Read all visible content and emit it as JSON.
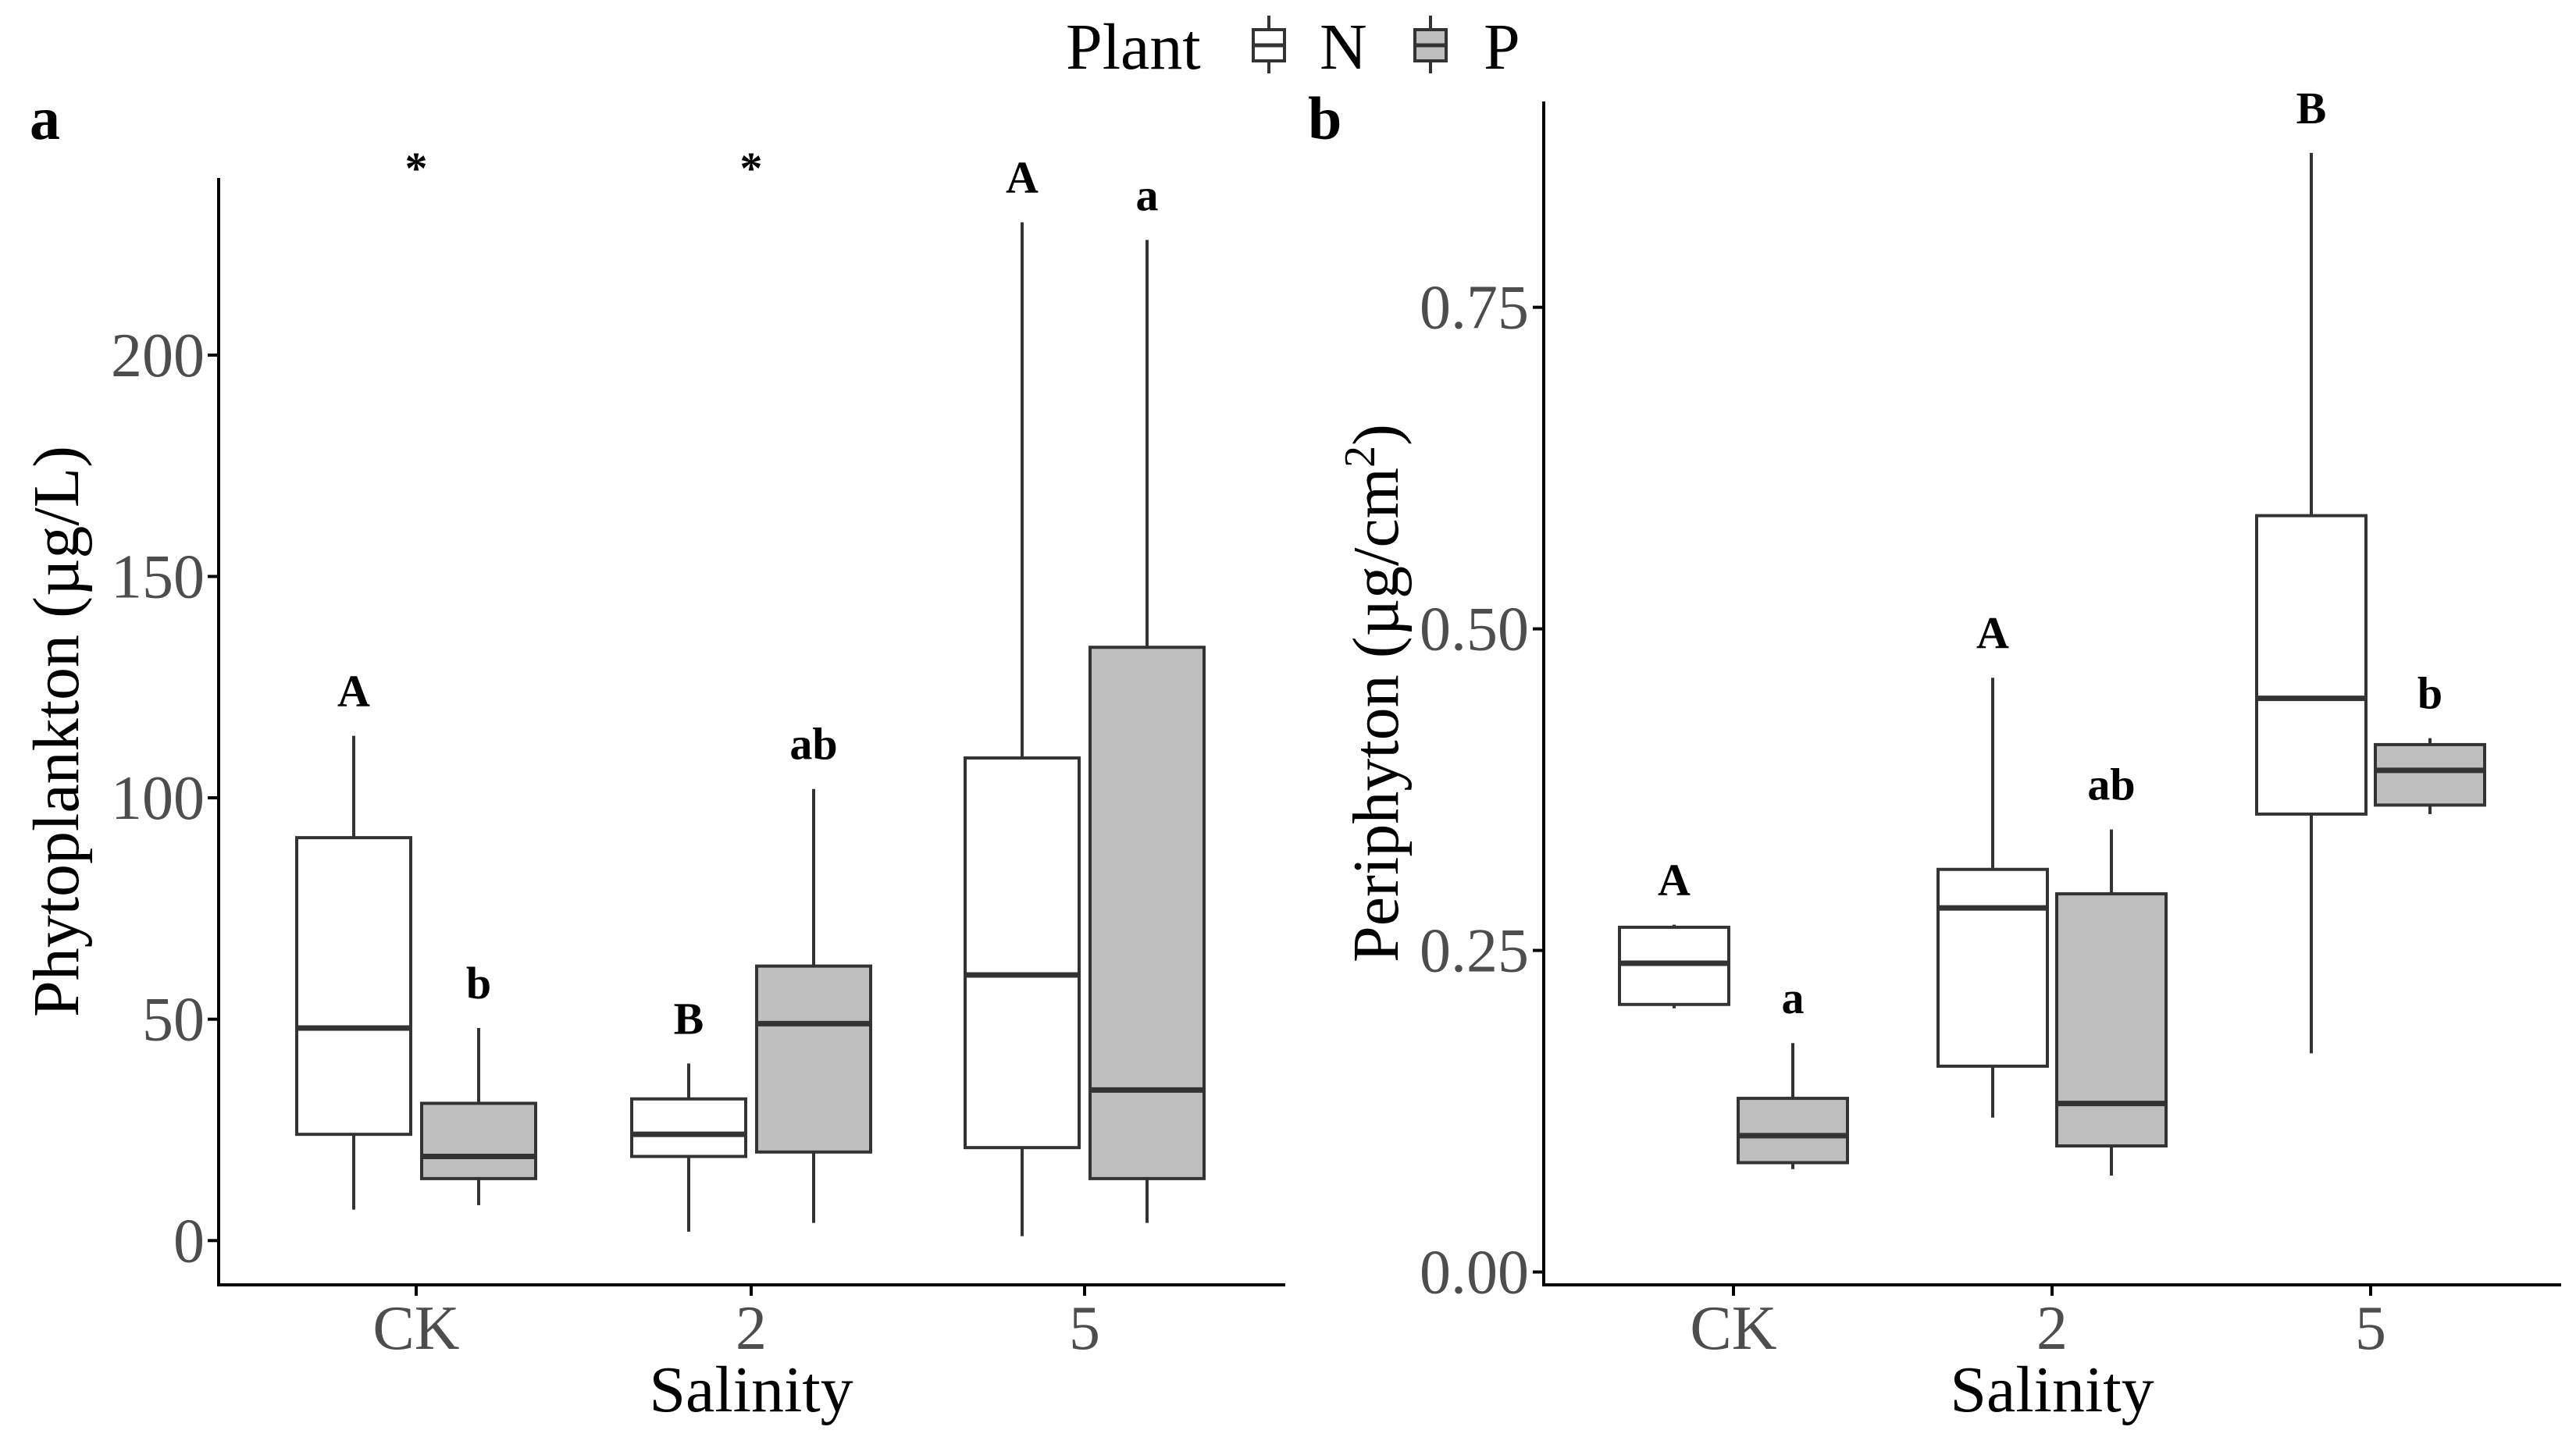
{
  "legend": {
    "title": "Plant",
    "items": [
      {
        "label": "N",
        "color": "#ffffff"
      },
      {
        "label": "P",
        "color": "#bebebe"
      }
    ]
  },
  "colors": {
    "N": "#ffffff",
    "P": "#bebebe",
    "stroke": "#333333",
    "axis": "#000000"
  },
  "chart_data": [
    {
      "panel": "a",
      "type": "box",
      "title": "",
      "xlabel": "Salinity",
      "ylabel": "Phytoplankton (µg/L)",
      "ylim": [
        -10,
        240
      ],
      "yticks": [
        0,
        50,
        100,
        150,
        200
      ],
      "ytick_labels": [
        "0",
        "50",
        "100",
        "150",
        "200"
      ],
      "categories": [
        "CK",
        "2",
        "5"
      ],
      "series": [
        {
          "name": "N",
          "boxes": [
            {
              "min": 7,
              "q1": 24,
              "median": 48,
              "q3": 91,
              "max": 114
            },
            {
              "min": 2,
              "q1": 19,
              "median": 24,
              "q3": 32,
              "max": 40
            },
            {
              "min": 1,
              "q1": 21,
              "median": 60,
              "q3": 109,
              "max": 230
            }
          ]
        },
        {
          "name": "P",
          "boxes": [
            {
              "min": 8,
              "q1": 14,
              "median": 19,
              "q3": 31,
              "max": 48
            },
            {
              "min": 4,
              "q1": 20,
              "median": 49,
              "q3": 62,
              "max": 102
            },
            {
              "min": 4,
              "q1": 14,
              "median": 34,
              "q3": 134,
              "max": 226
            }
          ]
        }
      ],
      "annotations": {
        "N": [
          "A",
          "B",
          "A"
        ],
        "P": [
          "b",
          "ab",
          "a"
        ],
        "between": [
          "*",
          "*",
          ""
        ]
      }
    },
    {
      "panel": "b",
      "type": "box",
      "title": "",
      "xlabel": "Salinity",
      "ylabel": "Periphyton (µg/cm",
      "ylabel_sup": "2",
      "ylabel_close": ")",
      "ylim": [
        -0.01,
        0.91
      ],
      "yticks": [
        0,
        0.25,
        0.5,
        0.75
      ],
      "ytick_labels": [
        "0.00",
        "0.25",
        "0.50",
        "0.75"
      ],
      "categories": [
        "CK",
        "2",
        "5"
      ],
      "series": [
        {
          "name": "N",
          "boxes": [
            {
              "min": 0.205,
              "q1": 0.208,
              "median": 0.24,
              "q3": 0.268,
              "max": 0.27
            },
            {
              "min": 0.12,
              "q1": 0.16,
              "median": 0.283,
              "q3": 0.313,
              "max": 0.462
            },
            {
              "min": 0.17,
              "q1": 0.356,
              "median": 0.446,
              "q3": 0.588,
              "max": 0.87
            }
          ]
        },
        {
          "name": "P",
          "boxes": [
            {
              "min": 0.08,
              "q1": 0.085,
              "median": 0.106,
              "q3": 0.135,
              "max": 0.178
            },
            {
              "min": 0.075,
              "q1": 0.098,
              "median": 0.131,
              "q3": 0.294,
              "max": 0.344
            },
            {
              "min": 0.356,
              "q1": 0.363,
              "median": 0.39,
              "q3": 0.41,
              "max": 0.415
            }
          ]
        }
      ],
      "annotations": {
        "N": [
          "A",
          "A",
          "B"
        ],
        "P": [
          "a",
          "ab",
          "b"
        ],
        "between": [
          "",
          "",
          ""
        ]
      }
    }
  ]
}
